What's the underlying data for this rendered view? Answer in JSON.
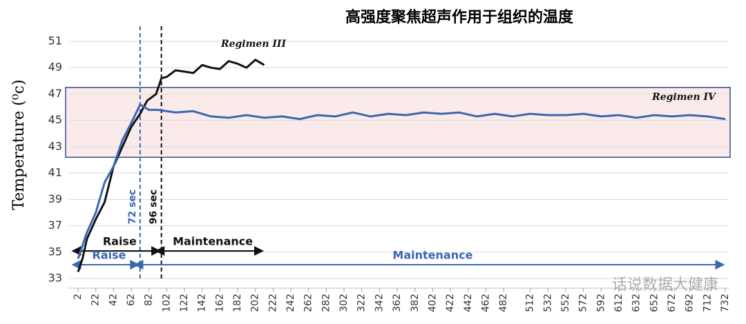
{
  "chart_data": {
    "type": "line",
    "title": "高强度聚焦超声作用于组织的温度",
    "y_label": "Temperature (⁰c)",
    "xlim": [
      2,
      732
    ],
    "xticks": [
      2,
      22,
      42,
      62,
      82,
      102,
      122,
      142,
      162,
      182,
      202,
      222,
      242,
      262,
      282,
      302,
      322,
      342,
      362,
      382,
      402,
      422,
      442,
      462,
      482,
      512,
      532,
      552,
      572,
      592,
      612,
      632,
      652,
      672,
      692,
      712,
      732
    ],
    "ylim": [
      33,
      51.5
    ],
    "yticks": [
      33,
      35,
      37,
      39,
      41,
      43,
      45,
      47,
      49,
      51
    ],
    "grid": true,
    "target_band": [
      42.2,
      47.5
    ],
    "series": [
      {
        "name": "Regimen III",
        "color": "#111111",
        "x": [
          2,
          7,
          12,
          22,
          32,
          42,
          52,
          62,
          72,
          80,
          90,
          96,
          102,
          112,
          122,
          132,
          142,
          152,
          162,
          172,
          182,
          192,
          202,
          212
        ],
        "values": [
          33.5,
          34.5,
          36,
          37.5,
          38.8,
          41.5,
          43,
          44.5,
          45.5,
          46.5,
          47,
          48.2,
          48.3,
          48.8,
          48.7,
          48.6,
          49.2,
          49.0,
          48.9,
          49.5,
          49.3,
          49.0,
          49.6,
          49.2
        ]
      },
      {
        "name": "Regimen IV",
        "color": "#3a66b0",
        "x": [
          2,
          12,
          22,
          32,
          42,
          52,
          62,
          72,
          82,
          92,
          112,
          132,
          152,
          172,
          192,
          212,
          232,
          252,
          272,
          292,
          312,
          332,
          352,
          372,
          392,
          412,
          432,
          452,
          472,
          492,
          512,
          532,
          552,
          572,
          592,
          612,
          632,
          652,
          672,
          692,
          712,
          732
        ],
        "values": [
          34.5,
          36.5,
          38,
          40.3,
          41.5,
          43.5,
          44.8,
          46.2,
          45.8,
          45.8,
          45.6,
          45.7,
          45.3,
          45.2,
          45.4,
          45.2,
          45.3,
          45.1,
          45.4,
          45.3,
          45.6,
          45.3,
          45.5,
          45.4,
          45.6,
          45.5,
          45.6,
          45.3,
          45.5,
          45.3,
          45.5,
          45.4,
          45.4,
          45.5,
          45.3,
          45.4,
          45.2,
          45.4,
          45.3,
          45.4,
          45.3,
          45.1
        ]
      }
    ],
    "markers": [
      {
        "x": 72,
        "label": "72 sec",
        "color": "#3a66b0"
      },
      {
        "x": 96,
        "label": "96 sec",
        "color": "#111111"
      }
    ],
    "phases": [
      {
        "text": "Raise",
        "x": [
          2,
          96
        ],
        "color": "#111111"
      },
      {
        "text": "Maintenance",
        "x": [
          96,
          212
        ],
        "color": "#111111"
      },
      {
        "text": "Raise",
        "x": [
          2,
          72
        ],
        "color": "#3a66b0"
      },
      {
        "text": "Maintenance",
        "x": [
          72,
          732
        ],
        "color": "#3a66b0"
      }
    ],
    "watermark": "话说数据大健康"
  }
}
